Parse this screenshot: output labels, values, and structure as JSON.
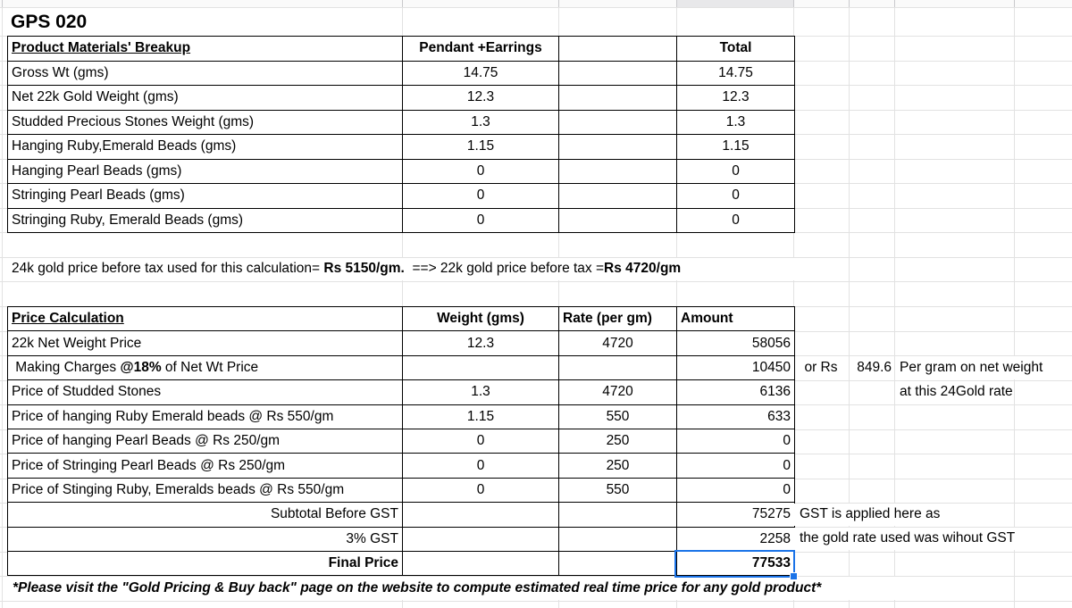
{
  "sheet": {
    "title": "GPS 020",
    "materials_table": {
      "header": {
        "label": "Product Materials' Breakup",
        "col_pendant": "Pendant +Earrings",
        "col_total": "Total"
      },
      "rows": [
        {
          "label": "Gross Wt (gms)",
          "pendant": "14.75",
          "total": "14.75"
        },
        {
          "label": "Net 22k Gold Weight (gms)",
          "pendant": "12.3",
          "total": "12.3"
        },
        {
          "label": "Studded Precious Stones Weight (gms)",
          "pendant": "1.3",
          "total": "1.3"
        },
        {
          "label": "Hanging Ruby,Emerald Beads (gms)",
          "pendant": "1.15",
          "total": "1.15"
        },
        {
          "label": "Hanging Pearl Beads (gms)",
          "pendant": "0",
          "total": "0"
        },
        {
          "label": "Stringing Pearl Beads (gms)",
          "pendant": "0",
          "total": "0"
        },
        {
          "label": "Stringing Ruby, Emerald Beads (gms)",
          "pendant": "0",
          "total": "0"
        }
      ]
    },
    "gold_price_note": {
      "pre": "24k gold price before tax used for this calculation= ",
      "bold1": "Rs 5150/gm.",
      "mid": "  ==> 22k gold price before tax =",
      "bold2": "Rs 4720/gm"
    },
    "price_table": {
      "header": {
        "label": "Price Calculation",
        "weight": "Weight (gms)",
        "rate": "Rate (per gm)",
        "amount": "Amount"
      },
      "rows": [
        {
          "label": "22k Net Weight Price",
          "weight": "12.3",
          "rate": "4720",
          "amount": "58056"
        },
        {
          "label_pre": " Making Charges ",
          "label_bold": "@18%",
          "label_post": " of Net Wt Price",
          "weight": "",
          "rate": "",
          "amount": "10450"
        },
        {
          "label": "Price of Studded Stones",
          "weight": "1.3",
          "rate": "4720",
          "amount": "6136"
        },
        {
          "label": "Price of hanging Ruby Emerald beads @ Rs 550/gm",
          "weight": "1.15",
          "rate": "550",
          "amount": "633"
        },
        {
          "label": "Price of hanging Pearl Beads @ Rs 250/gm",
          "weight": "0",
          "rate": "250",
          "amount": "0"
        },
        {
          "label": "Price of Stringing Pearl Beads @ Rs 250/gm",
          "weight": "0",
          "rate": "250",
          "amount": "0"
        },
        {
          "label": "Price of Stinging Ruby, Emeralds beads @ Rs 550/gm",
          "weight": "0",
          "rate": "550",
          "amount": "0"
        }
      ],
      "totals": [
        {
          "label": "Subtotal Before GST",
          "amount": "75275"
        },
        {
          "label": "3% GST",
          "amount": "2258"
        },
        {
          "label": "Final Price",
          "amount": "77533"
        }
      ]
    },
    "side_notes": {
      "making_charges": {
        "or_rs": "or Rs",
        "per_gram_value": "849.6",
        "per_gram_text": "Per gram on net weight",
        "rate_context": "at this 24Gold rate"
      },
      "gst_note_line1": "GST is applied here as",
      "gst_note_line2": "the gold rate used was wihout GST"
    },
    "footer_note": "*Please visit the \"Gold Pricing & Buy back\" page on the website to compute estimated real time price for any gold product*",
    "selection": {
      "selected_value": "77533",
      "accent_color": "#1a73e8"
    }
  }
}
